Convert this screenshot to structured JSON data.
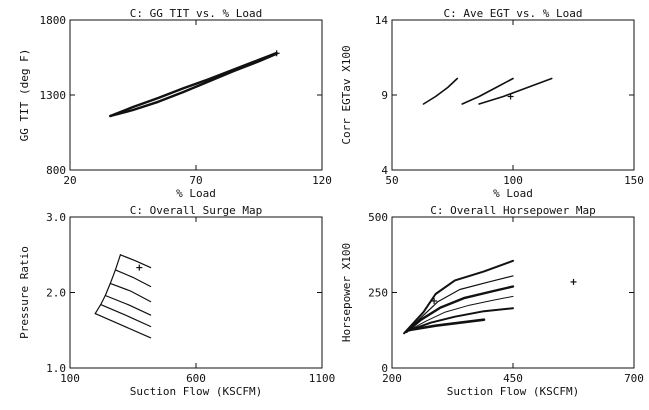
{
  "chart_data": [
    {
      "type": "line",
      "title": "C: GG TIT vs. % Load",
      "xlabel": "% Load",
      "ylabel": "GG TIT (deg F)",
      "xlim": [
        20,
        120
      ],
      "ylim": [
        800,
        1800
      ],
      "xticks": [
        "20",
        "70",
        "120"
      ],
      "yticks": [
        "800",
        "1300",
        "1800"
      ],
      "series": [
        {
          "values": [
            [
              36,
              1160
            ],
            [
              45,
              1220
            ],
            [
              55,
              1280
            ],
            [
              65,
              1345
            ],
            [
              75,
              1405
            ],
            [
              85,
              1470
            ],
            [
              95,
              1535
            ],
            [
              102,
              1580
            ]
          ]
        },
        {
          "values": [
            [
              36,
              1160
            ],
            [
              45,
              1200
            ],
            [
              55,
              1255
            ],
            [
              65,
              1320
            ],
            [
              75,
              1390
            ],
            [
              85,
              1460
            ],
            [
              95,
              1525
            ],
            [
              102,
              1575
            ]
          ]
        }
      ],
      "markers": [
        [
          102,
          1578
        ]
      ]
    },
    {
      "type": "line",
      "title": "C: Ave EGT vs. % Load",
      "xlabel": "% Load",
      "ylabel": "Corr EGTav X100",
      "xlim": [
        50,
        150
      ],
      "ylim": [
        4,
        14
      ],
      "xticks": [
        "50",
        "100",
        "150"
      ],
      "yticks": [
        "4",
        "9",
        "14"
      ],
      "series": [
        {
          "values": [
            [
              63,
              8.4
            ],
            [
              68,
              8.9
            ],
            [
              73,
              9.5
            ],
            [
              77,
              10.1
            ]
          ]
        },
        {
          "values": [
            [
              79,
              8.4
            ],
            [
              86,
              8.9
            ],
            [
              93,
              9.5
            ],
            [
              100,
              10.1
            ]
          ]
        },
        {
          "values": [
            [
              86,
              8.4
            ],
            [
              96,
              8.9
            ],
            [
              106,
              9.5
            ],
            [
              116,
              10.1
            ]
          ]
        }
      ],
      "markers": [
        [
          99,
          8.9
        ]
      ]
    },
    {
      "type": "line",
      "title": "C: Overall Surge Map",
      "xlabel": "Suction Flow (KSCFM)",
      "ylabel": "Pressure Ratio",
      "xlim": [
        100,
        1100
      ],
      "ylim": [
        1.0,
        3.0
      ],
      "xticks": [
        "100",
        "600",
        "1100"
      ],
      "yticks": [
        "1.0",
        "2.0",
        "3.0"
      ],
      "series": [
        {
          "values": [
            [
              300,
              2.5
            ],
            [
              360,
              2.42
            ],
            [
              420,
              2.33
            ]
          ]
        },
        {
          "values": [
            [
              280,
              2.3
            ],
            [
              350,
              2.2
            ],
            [
              420,
              2.08
            ]
          ]
        },
        {
          "values": [
            [
              260,
              2.12
            ],
            [
              340,
              2.02
            ],
            [
              420,
              1.88
            ]
          ]
        },
        {
          "values": [
            [
              240,
              1.96
            ],
            [
              330,
              1.84
            ],
            [
              420,
              1.7
            ]
          ]
        },
        {
          "values": [
            [
              222,
              1.84
            ],
            [
              320,
              1.7
            ],
            [
              420,
              1.55
            ]
          ]
        },
        {
          "values": [
            [
              200,
              1.72
            ],
            [
              310,
              1.56
            ],
            [
              420,
              1.4
            ]
          ]
        },
        {
          "values": [
            [
              200,
              1.72
            ],
            [
              222,
              1.84
            ],
            [
              240,
              1.96
            ],
            [
              260,
              2.12
            ],
            [
              280,
              2.3
            ],
            [
              300,
              2.5
            ]
          ]
        }
      ],
      "markers": [
        [
          375,
          2.33
        ]
      ]
    },
    {
      "type": "line",
      "title": "C: Overall Horsepower Map",
      "xlabel": "Suction Flow (KSCFM)",
      "ylabel": "Horsepower X100",
      "xlim": [
        200,
        700
      ],
      "ylim": [
        0,
        500
      ],
      "xticks": [
        "200",
        "450",
        "700"
      ],
      "yticks": [
        "0",
        "250",
        "500"
      ],
      "series": [
        {
          "values": [
            [
              225,
              115
            ],
            [
              265,
              185
            ],
            [
              290,
              245
            ],
            [
              330,
              290
            ],
            [
              390,
              320
            ],
            [
              450,
              355
            ]
          ]
        },
        {
          "values": [
            [
              228,
              118
            ],
            [
              262,
              170
            ],
            [
              295,
              220
            ],
            [
              340,
              260
            ],
            [
              400,
              285
            ],
            [
              450,
              305
            ]
          ]
        },
        {
          "values": [
            [
              230,
              120
            ],
            [
              260,
              160
            ],
            [
              300,
              200
            ],
            [
              350,
              232
            ],
            [
              410,
              255
            ],
            [
              450,
              270
            ]
          ]
        },
        {
          "values": [
            [
              232,
              122
            ],
            [
              270,
              155
            ],
            [
              310,
              185
            ],
            [
              360,
              208
            ],
            [
              410,
              225
            ],
            [
              450,
              237
            ]
          ]
        },
        {
          "values": [
            [
              235,
              124
            ],
            [
              280,
              150
            ],
            [
              330,
              170
            ],
            [
              390,
              188
            ],
            [
              450,
              198
            ]
          ]
        },
        {
          "values": [
            [
              238,
              126
            ],
            [
              290,
              140
            ],
            [
              340,
              150
            ],
            [
              390,
              160
            ]
          ]
        }
      ],
      "markers": [
        [
          575,
          285
        ],
        [
          287,
          222
        ]
      ]
    }
  ]
}
